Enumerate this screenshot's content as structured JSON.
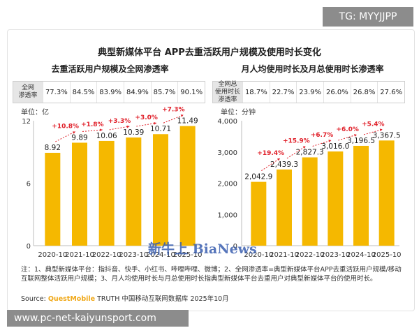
{
  "overlay_tag": "TG: MYYJJPP",
  "main_title": "典型新媒体平台 APP去重活跃用户规模及使用时长变化",
  "left_panel": {
    "title": "去重活跃用户规模及全网渗透率",
    "rate_label_lines": [
      "全网",
      "渗透率"
    ],
    "rates": [
      "77.3%",
      "84.5%",
      "83.9%",
      "84.9%",
      "85.7%",
      "90.1%"
    ],
    "unit": "单位：亿"
  },
  "right_panel": {
    "title": "月人均使用时长及月总使用时长渗透率",
    "rate_label_lines": [
      "全网总",
      "使用时长",
      "渗透率"
    ],
    "rates": [
      "18.7%",
      "22.7%",
      "23.9%",
      "26.0%",
      "26.8%",
      "27.6%"
    ],
    "unit": "单位：分钟"
  },
  "chart_data": [
    {
      "type": "bar",
      "title": "去重活跃用户规模及全网渗透率",
      "categories": [
        "2020-10",
        "2021-10",
        "2022-10",
        "2023-10",
        "2024-10",
        "2025-10"
      ],
      "values": [
        8.92,
        9.89,
        10.06,
        10.39,
        10.71,
        11.49
      ],
      "value_labels": [
        "8.92",
        "9.89",
        "10.06",
        "10.39",
        "10.71",
        "11.49"
      ],
      "growth_labels": [
        "+10.8%",
        "+1.8%",
        "+3.3%",
        "+3.0%",
        "+7.3%"
      ],
      "y_ticks": [
        "0",
        "6",
        "12"
      ],
      "ylim": [
        0,
        12
      ],
      "ylabel": "单位：亿",
      "bar_color": "#f5b800",
      "growth_color": "#e0202a"
    },
    {
      "type": "bar",
      "title": "月人均使用时长及月总使用时长渗透率",
      "categories": [
        "2020-10",
        "2021-10",
        "2022-10",
        "2023-10",
        "2024-10",
        "2025-10"
      ],
      "values": [
        2042.9,
        2439.3,
        2827.3,
        3016.0,
        3196.5,
        3367.5
      ],
      "value_labels": [
        "2,042.9",
        "2,439.3",
        "2,827.3",
        "3,016.0",
        "3,196.5",
        "3,367.5"
      ],
      "growth_labels": [
        "+19.4%",
        "+15.9%",
        "+6.7%",
        "+6.0%",
        "+5.4%"
      ],
      "y_ticks": [
        "0",
        "1,000",
        "2,000",
        "3,000",
        "4,000"
      ],
      "ylim": [
        0,
        4000
      ],
      "ylabel": "单位：分钟",
      "bar_color": "#f5b800",
      "growth_color": "#e0202a"
    }
  ],
  "notes": "注：1、典型新媒体平台：指抖音、快手、小红书、哔哩哔哩、微博；2、全网渗透率=典型新媒体平台APP去重活跃用户规模/移动互联网整体活跃用户规模；3、月人均使用时长与月总使用时长指典型新媒体平台去重用户对典型新媒体平台的使用时长。",
  "source_prefix": "Source: ",
  "source_brand": "QuestMobile",
  "source_text": " TRUTH 中国移动互联网数据库 2025年10月",
  "watermark": "新牛上 BiaNews",
  "footer_url": "www.pc-net-kaiyunsport.com"
}
